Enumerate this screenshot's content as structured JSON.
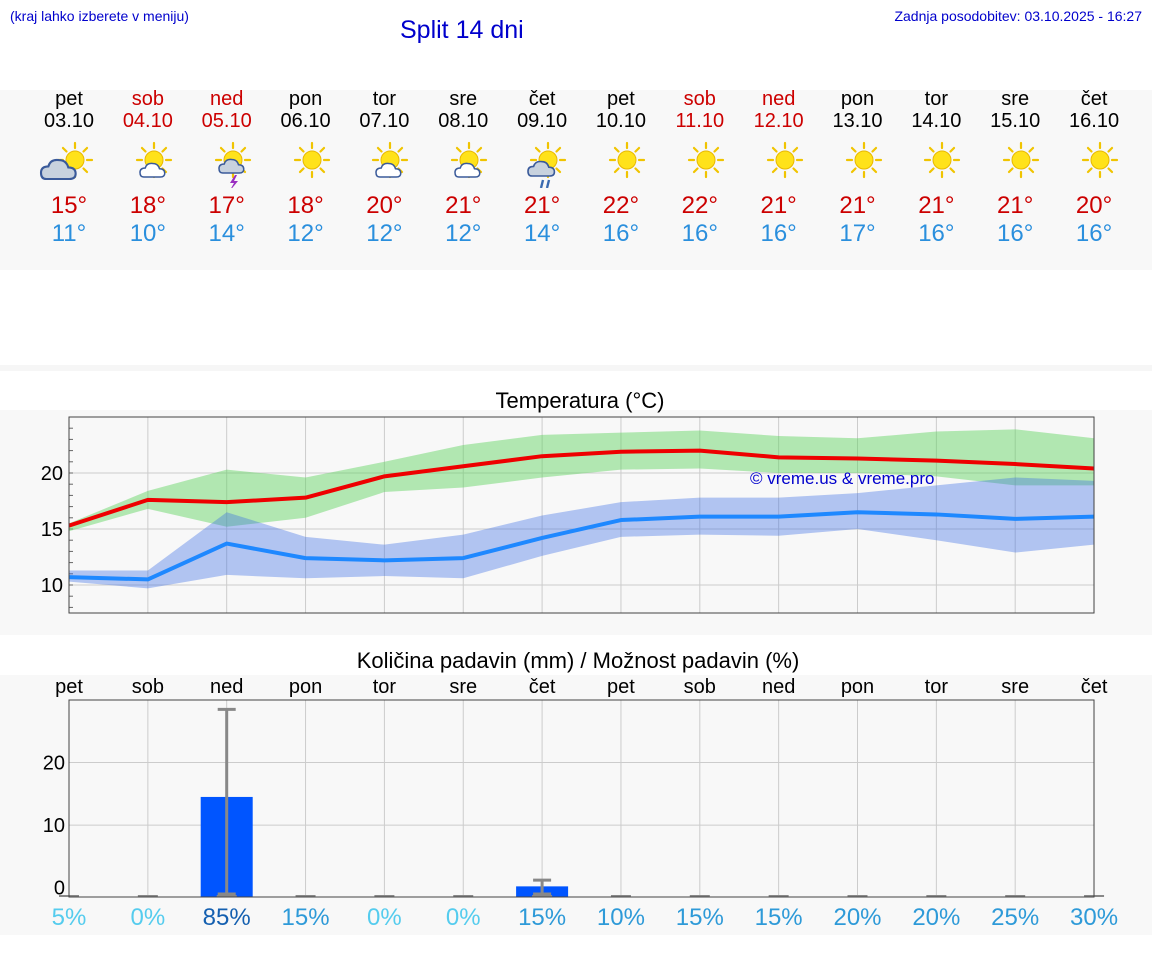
{
  "header": {
    "note": "(kraj lahko izberete v meniju)",
    "title": "Split 14 dni",
    "updated": "Zadnja posodobitev: 03.10.2025 - 16:27"
  },
  "days": [
    {
      "name": "pet",
      "date": "03.10",
      "weekend": false,
      "icon": "sun-cloud-icon",
      "tmax": "15°",
      "tmin": "11°"
    },
    {
      "name": "sob",
      "date": "04.10",
      "weekend": true,
      "icon": "sun-small-cloud-icon",
      "tmax": "18°",
      "tmin": "10°"
    },
    {
      "name": "ned",
      "date": "05.10",
      "weekend": true,
      "icon": "sun-thunder-icon",
      "tmax": "17°",
      "tmin": "14°"
    },
    {
      "name": "pon",
      "date": "06.10",
      "weekend": false,
      "icon": "sun-icon",
      "tmax": "18°",
      "tmin": "12°"
    },
    {
      "name": "tor",
      "date": "07.10",
      "weekend": false,
      "icon": "sun-small-cloud-icon",
      "tmax": "20°",
      "tmin": "12°"
    },
    {
      "name": "sre",
      "date": "08.10",
      "weekend": false,
      "icon": "sun-small-cloud-icon",
      "tmax": "21°",
      "tmin": "12°"
    },
    {
      "name": "čet",
      "date": "09.10",
      "weekend": false,
      "icon": "sun-rain-icon",
      "tmax": "21°",
      "tmin": "14°"
    },
    {
      "name": "pet",
      "date": "10.10",
      "weekend": false,
      "icon": "sun-icon",
      "tmax": "22°",
      "tmin": "16°"
    },
    {
      "name": "sob",
      "date": "11.10",
      "weekend": true,
      "icon": "sun-icon",
      "tmax": "22°",
      "tmin": "16°"
    },
    {
      "name": "ned",
      "date": "12.10",
      "weekend": true,
      "icon": "sun-icon",
      "tmax": "21°",
      "tmin": "16°"
    },
    {
      "name": "pon",
      "date": "13.10",
      "weekend": false,
      "icon": "sun-icon",
      "tmax": "21°",
      "tmin": "17°"
    },
    {
      "name": "tor",
      "date": "14.10",
      "weekend": false,
      "icon": "sun-icon",
      "tmax": "21°",
      "tmin": "16°"
    },
    {
      "name": "sre",
      "date": "15.10",
      "weekend": false,
      "icon": "sun-icon",
      "tmax": "21°",
      "tmin": "16°"
    },
    {
      "name": "čet",
      "date": "16.10",
      "weekend": false,
      "icon": "sun-icon",
      "tmax": "20°",
      "tmin": "16°"
    }
  ],
  "chart_data": [
    {
      "type": "line",
      "title": "Temperatura (°C)",
      "watermark": "© vreme.us & vreme.pro",
      "x": [
        "03.10",
        "04.10",
        "05.10",
        "06.10",
        "07.10",
        "08.10",
        "09.10",
        "10.10",
        "11.10",
        "12.10",
        "13.10",
        "14.10",
        "15.10",
        "16.10"
      ],
      "ylim": [
        7.5,
        25
      ],
      "yticks": [
        10,
        15,
        20
      ],
      "grid": true,
      "series": [
        {
          "role": "max",
          "color": "#ee0000",
          "values": [
            15.3,
            17.6,
            17.4,
            17.8,
            19.7,
            20.6,
            21.5,
            21.9,
            22.0,
            21.4,
            21.3,
            21.1,
            20.8,
            20.4
          ],
          "band_low": [
            14.8,
            16.8,
            15.2,
            16.0,
            18.3,
            18.7,
            19.6,
            20.3,
            20.4,
            20.0,
            20.0,
            19.7,
            18.9,
            18.9
          ],
          "band_high": [
            15.5,
            18.4,
            20.3,
            19.6,
            21.0,
            22.5,
            23.4,
            23.6,
            23.8,
            23.3,
            23.1,
            23.7,
            23.9,
            23.1
          ]
        },
        {
          "role": "min",
          "color": "#1e88ff",
          "values": [
            10.7,
            10.5,
            13.7,
            12.4,
            12.2,
            12.4,
            14.2,
            15.8,
            16.1,
            16.1,
            16.5,
            16.3,
            15.9,
            16.1
          ],
          "band_low": [
            10.3,
            9.7,
            10.9,
            10.6,
            10.8,
            10.6,
            12.6,
            14.3,
            14.5,
            14.4,
            15.0,
            14.0,
            12.9,
            13.6
          ],
          "band_high": [
            11.3,
            11.3,
            16.5,
            14.3,
            13.6,
            14.5,
            16.2,
            17.4,
            17.8,
            17.8,
            18.2,
            18.9,
            19.6,
            19.3
          ]
        }
      ]
    },
    {
      "type": "bar",
      "title": "Količina padavin (mm) / Možnost padavin (%)",
      "categories": [
        "pet",
        "sob",
        "ned",
        "pon",
        "tor",
        "sre",
        "čet",
        "pet",
        "sob",
        "ned",
        "pon",
        "tor",
        "sre",
        "čet"
      ],
      "values": [
        0,
        0,
        14.5,
        0,
        0,
        0,
        0.2,
        0,
        0,
        0,
        0,
        0,
        0,
        0
      ],
      "error_high": [
        0,
        0,
        28.5,
        0,
        0,
        0,
        1.2,
        0,
        0,
        0,
        0,
        0,
        0,
        0
      ],
      "probability": [
        "5%",
        "0%",
        "85%",
        "15%",
        "0%",
        "0%",
        "15%",
        "10%",
        "15%",
        "15%",
        "20%",
        "20%",
        "25%",
        "30%"
      ],
      "ylim": [
        -1.5,
        30
      ],
      "yticks": [
        0,
        10,
        20
      ],
      "bar_color": "#0055ff",
      "grid": true
    }
  ]
}
